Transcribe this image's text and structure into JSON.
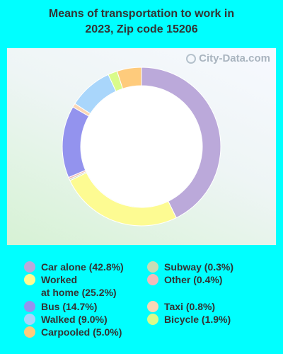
{
  "chart_data": {
    "type": "pie",
    "variant": "donut",
    "title": "Means of transportation to work in 2023, Zip code 15206",
    "title_lines": [
      "Means of transportation to work in",
      "2023, Zip code 15206"
    ],
    "watermark": "City-Data.com",
    "slices": [
      {
        "label": "Car alone (42.8%)",
        "value": 42.8,
        "color": "#BBA9DA"
      },
      {
        "label": "Subway (0.3%)",
        "value": 0.3,
        "color": "#C7DDB5"
      },
      {
        "label": "Worked\nat home (25.2%)",
        "value": 25.2,
        "color": "#FDFB92"
      },
      {
        "label": "Other (0.4%)",
        "value": 0.4,
        "color": "#F3BBB9"
      },
      {
        "label": "Bus (14.7%)",
        "value": 14.7,
        "color": "#9393EE"
      },
      {
        "label": "Taxi (0.8%)",
        "value": 0.8,
        "color": "#FBD7B5"
      },
      {
        "label": "Walked (9.0%)",
        "value": 9.0,
        "color": "#A9D6FB"
      },
      {
        "label": "Bicycle (1.9%)",
        "value": 1.9,
        "color": "#D9FB8A"
      },
      {
        "label": "Carpooled (5.0%)",
        "value": 5.0,
        "color": "#FECB7C"
      }
    ],
    "legend_placement": "bottom"
  }
}
